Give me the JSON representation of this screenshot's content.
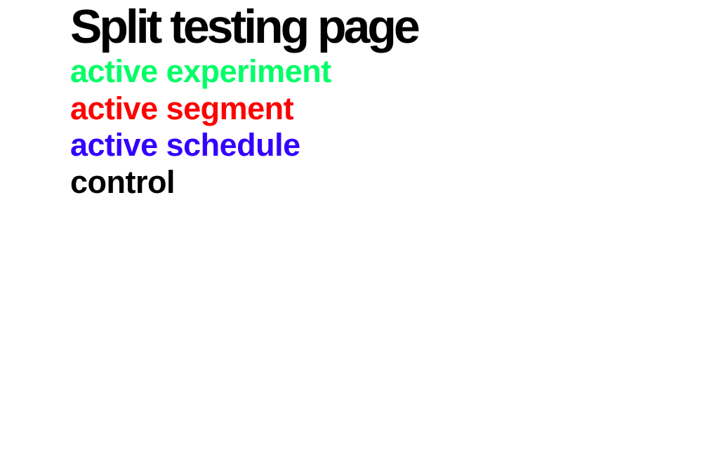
{
  "page": {
    "title": "Split testing page"
  },
  "variants": [
    {
      "label": "active experiment",
      "color": "#00ff66"
    },
    {
      "label": "active segment",
      "color": "#ff0000"
    },
    {
      "label": "active schedule",
      "color": "#3300ff"
    },
    {
      "label": "control",
      "color": "#000000"
    }
  ]
}
